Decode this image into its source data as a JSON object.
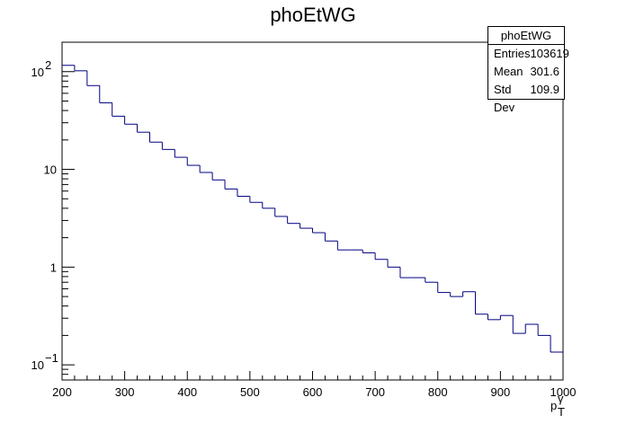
{
  "chart_data": {
    "type": "bar",
    "title": "phoEtWG",
    "xlabel": "p_T^γ",
    "xlabel_main": "p",
    "xlabel_sup": "γ",
    "xlabel_sub": "T",
    "ylabel": "",
    "xlim": [
      200,
      1000
    ],
    "ylim": [
      0.07,
      200
    ],
    "y_scale": "log",
    "bin_width": 20,
    "x_ticks": [
      {
        "value": 200,
        "label": "200"
      },
      {
        "value": 300,
        "label": "300"
      },
      {
        "value": 400,
        "label": "400"
      },
      {
        "value": 500,
        "label": "500"
      },
      {
        "value": 600,
        "label": "600"
      },
      {
        "value": 700,
        "label": "700"
      },
      {
        "value": 800,
        "label": "800"
      },
      {
        "value": 900,
        "label": "900"
      },
      {
        "value": 1000,
        "label": "1000"
      }
    ],
    "y_ticks": [
      {
        "value": 0.1,
        "base": "10",
        "exp": "−1"
      },
      {
        "value": 1,
        "base": "1",
        "exp": ""
      },
      {
        "value": 10,
        "base": "10",
        "exp": ""
      },
      {
        "value": 100,
        "base": "10",
        "exp": "2"
      }
    ],
    "bin_edges": [
      200,
      220,
      240,
      260,
      280,
      300,
      320,
      340,
      360,
      380,
      400,
      420,
      440,
      460,
      480,
      500,
      520,
      540,
      560,
      580,
      600,
      620,
      640,
      660,
      680,
      700,
      720,
      740,
      760,
      780,
      800,
      820,
      840,
      860,
      880,
      900,
      920,
      940,
      960,
      980,
      1000
    ],
    "values": [
      116,
      102,
      72,
      48,
      35,
      29,
      24,
      19,
      16,
      13.3,
      11,
      9.3,
      7.8,
      6.3,
      5.3,
      4.6,
      4.0,
      3.3,
      2.8,
      2.5,
      2.25,
      1.85,
      1.5,
      1.5,
      1.4,
      1.2,
      1.0,
      0.78,
      0.78,
      0.7,
      0.55,
      0.5,
      0.56,
      0.33,
      0.29,
      0.32,
      0.21,
      0.26,
      0.2,
      0.135
    ],
    "line_color": "#000080",
    "grid": false,
    "stats": {
      "name": "phoEtWG",
      "rows": [
        {
          "label": "Entries",
          "value": "103619"
        },
        {
          "label": "Mean",
          "value": "301.6"
        },
        {
          "label": "Std Dev",
          "value": "109.9"
        }
      ]
    }
  }
}
